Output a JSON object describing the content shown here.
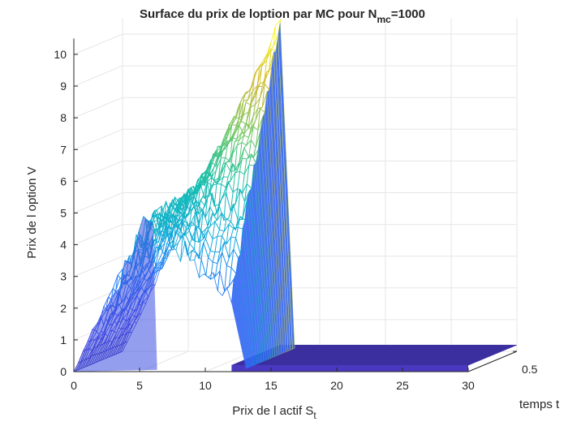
{
  "chart_data": {
    "type": "surface",
    "title": "Surface du prix de loption par MC pour N",
    "title_sub": "mc",
    "title_suffix": "=1000",
    "xlabel": "Prix de l actif S",
    "xlabel_sub": "t",
    "ylabel": "temps t",
    "zlabel": "Prix de l option V",
    "xlim": [
      0,
      30
    ],
    "ylim": [
      0,
      0.5
    ],
    "zlim": [
      0,
      10
    ],
    "x_ticks": [
      "0",
      "5",
      "10",
      "15",
      "20",
      "25",
      "30"
    ],
    "y_ticks": [
      "0.5"
    ],
    "z_ticks": [
      "0",
      "1",
      "2",
      "3",
      "4",
      "5",
      "6",
      "7",
      "8",
      "9",
      "10"
    ],
    "strike": 12,
    "grid": true,
    "colormap": "parula",
    "description_points": [
      {
        "S": 0,
        "V": 0
      },
      {
        "S": 6,
        "V": 4.7
      },
      {
        "S": 12,
        "V": 10.5
      },
      {
        "S": 12,
        "V": 0
      },
      {
        "S": 30,
        "V": 0
      }
    ]
  }
}
